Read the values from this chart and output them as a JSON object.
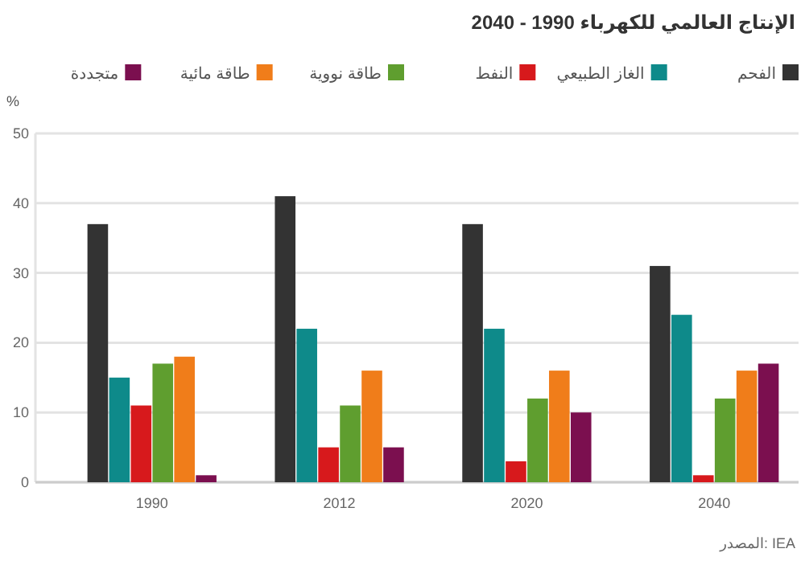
{
  "chart_data": {
    "type": "bar",
    "title": "الإنتاج العالمي للكهرباء 1990 - 2040",
    "ylabel": "%",
    "categories": [
      "1990",
      "2012",
      "2020",
      "2040"
    ],
    "series": [
      {
        "name": "الفحم",
        "color": "#333333",
        "values": [
          37,
          41,
          37,
          31
        ]
      },
      {
        "name": "الغاز الطبيعي",
        "color": "#0e8a8a",
        "values": [
          15,
          22,
          22,
          24
        ]
      },
      {
        "name": "النفط",
        "color": "#d7191c",
        "values": [
          11,
          5,
          3,
          1
        ]
      },
      {
        "name": "طاقة نووية",
        "color": "#5f9e2f",
        "values": [
          17,
          11,
          12,
          12
        ]
      },
      {
        "name": "طاقة مائية",
        "color": "#f07d1a",
        "values": [
          18,
          16,
          16,
          16
        ]
      },
      {
        "name": "متجددة",
        "color": "#7b0f4f",
        "values": [
          1,
          5,
          10,
          17
        ]
      }
    ],
    "ylim": [
      0,
      50
    ],
    "yticks": [
      0,
      10,
      20,
      30,
      40,
      50
    ],
    "grid": "y",
    "legend": "top",
    "annotations": [
      "المصدر: IEA"
    ]
  }
}
